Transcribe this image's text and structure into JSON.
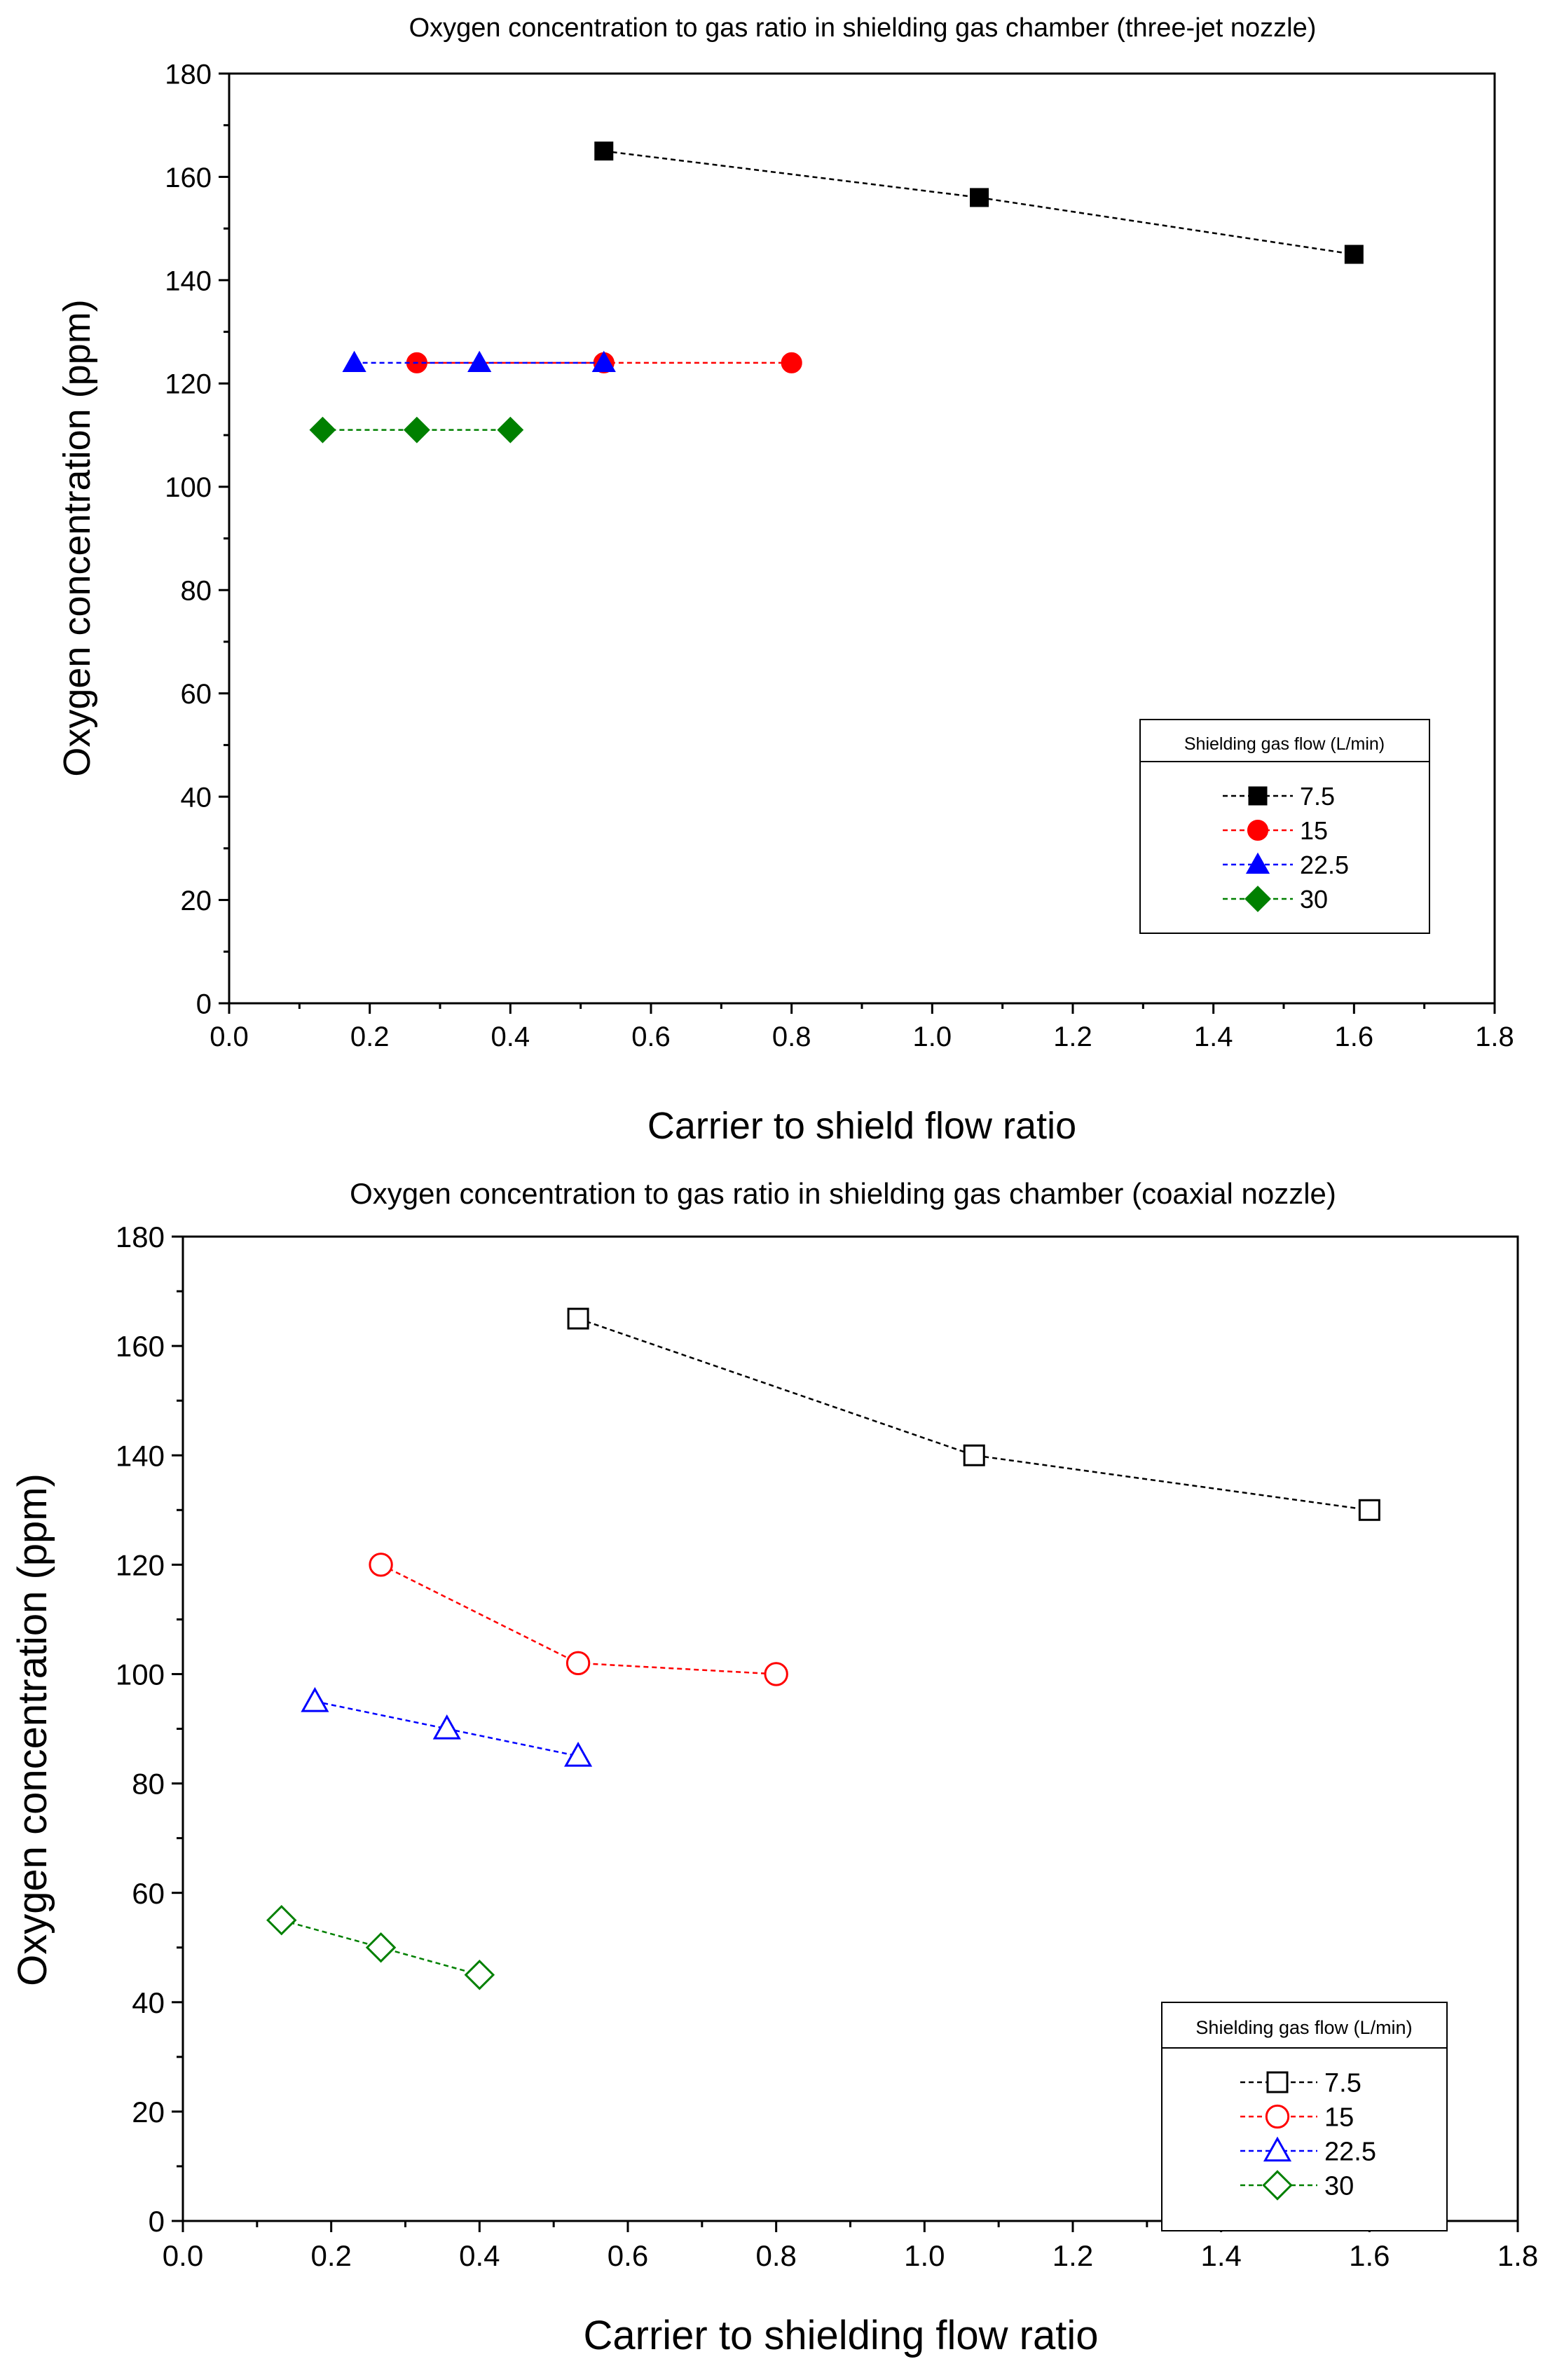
{
  "chart_data": [
    {
      "type": "line",
      "title": "Oxygen concentration to gas ratio in shielding gas chamber (three-jet nozzle)",
      "xlabel": "Carrier to shield flow ratio",
      "ylabel": "Oxygen concentration (ppm)",
      "xlim": [
        0,
        1.8
      ],
      "ylim": [
        0,
        180
      ],
      "x_ticks": [
        "0.0",
        "0.2",
        "0.4",
        "0.6",
        "0.8",
        "1.0",
        "1.2",
        "1.4",
        "1.6",
        "1.8"
      ],
      "y_ticks": [
        "0",
        "20",
        "40",
        "60",
        "80",
        "100",
        "120",
        "140",
        "160",
        "180"
      ],
      "legend_title": "Shielding gas flow (L/min)",
      "legend_position": "bottom-right",
      "marker_fill": "filled",
      "series": [
        {
          "name": "7.5",
          "color": "#000000",
          "marker": "square",
          "x": [
            0.533,
            1.067,
            1.6
          ],
          "y": [
            165,
            156,
            145
          ]
        },
        {
          "name": "15",
          "color": "#ff0000",
          "marker": "circle",
          "x": [
            0.267,
            0.533,
            0.8
          ],
          "y": [
            124,
            124,
            124
          ]
        },
        {
          "name": "22.5",
          "color": "#0000ff",
          "marker": "triangle",
          "x": [
            0.178,
            0.356,
            0.533
          ],
          "y": [
            124,
            124,
            124
          ]
        },
        {
          "name": "30",
          "color": "#008000",
          "marker": "diamond",
          "x": [
            0.133,
            0.267,
            0.4
          ],
          "y": [
            111,
            111,
            111
          ]
        }
      ]
    },
    {
      "type": "line",
      "title": "Oxygen concentration to gas ratio in shielding gas chamber (coaxial nozzle)",
      "xlabel": "Carrier to shielding flow ratio",
      "ylabel": "Oxygen concentration (ppm)",
      "xlim": [
        0,
        1.8
      ],
      "ylim": [
        0,
        180
      ],
      "x_ticks": [
        "0.0",
        "0.2",
        "0.4",
        "0.6",
        "0.8",
        "1.0",
        "1.2",
        "1.4",
        "1.6",
        "1.8"
      ],
      "y_ticks": [
        "0",
        "20",
        "40",
        "60",
        "80",
        "100",
        "120",
        "140",
        "160",
        "180"
      ],
      "legend_title": "Shielding gas flow (L/min)",
      "legend_position": "bottom-right",
      "marker_fill": "hollow",
      "series": [
        {
          "name": "7.5",
          "color": "#000000",
          "marker": "square",
          "x": [
            0.533,
            1.067,
            1.6
          ],
          "y": [
            165,
            140,
            130
          ]
        },
        {
          "name": "15",
          "color": "#ff0000",
          "marker": "circle",
          "x": [
            0.267,
            0.533,
            0.8
          ],
          "y": [
            120,
            102,
            100
          ]
        },
        {
          "name": "22.5",
          "color": "#0000ff",
          "marker": "triangle",
          "x": [
            0.178,
            0.356,
            0.533
          ],
          "y": [
            95,
            90,
            85
          ]
        },
        {
          "name": "30",
          "color": "#008000",
          "marker": "diamond",
          "x": [
            0.133,
            0.267,
            0.4
          ],
          "y": [
            55,
            50,
            45
          ]
        }
      ]
    }
  ]
}
